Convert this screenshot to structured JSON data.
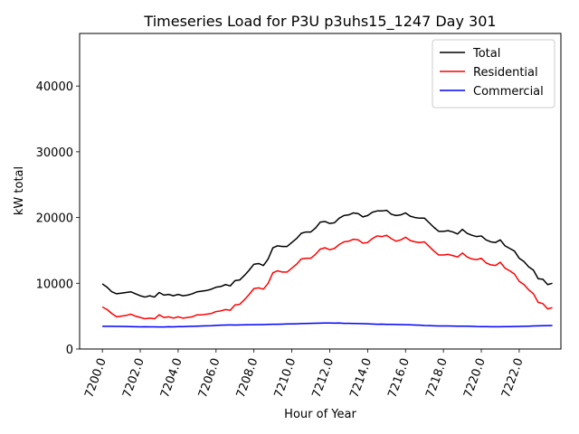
{
  "chart_data": {
    "type": "line",
    "title": "Timeseries Load for P3U p3uhs15_1247  Day 301",
    "xlabel": "Hour of Year",
    "ylabel": "kW total",
    "xlim": [
      7198.8,
      7224.2
    ],
    "ylim": [
      0,
      48000
    ],
    "xticks": [
      7200,
      7202,
      7204,
      7206,
      7208,
      7210,
      7212,
      7214,
      7216,
      7218,
      7220,
      7222
    ],
    "xtick_labels": [
      "7200.0",
      "7202.0",
      "7204.0",
      "7206.0",
      "7208.0",
      "7210.0",
      "7212.0",
      "7214.0",
      "7216.0",
      "7218.0",
      "7220.0",
      "7222.0"
    ],
    "yticks": [
      0,
      10000,
      20000,
      30000,
      40000
    ],
    "ytick_labels": [
      "0",
      "10000",
      "20000",
      "30000",
      "40000"
    ],
    "legend_position": "top-right",
    "x_start": 7200,
    "x_step": 0.25,
    "series": [
      {
        "name": "Total",
        "color": "#000000",
        "values": [
          9900,
          9400,
          8700,
          8400,
          8500,
          8600,
          8700,
          8400,
          8100,
          7900,
          8100,
          7900,
          8600,
          8200,
          8300,
          8100,
          8300,
          8100,
          8200,
          8400,
          8700,
          8800,
          8900,
          9100,
          9400,
          9500,
          9800,
          9600,
          10400,
          10500,
          11200,
          12000,
          12900,
          13000,
          12700,
          13700,
          15400,
          15700,
          15600,
          15600,
          16200,
          16800,
          17600,
          17800,
          17800,
          18400,
          19300,
          19400,
          19100,
          19200,
          19900,
          20300,
          20400,
          20700,
          20600,
          20100,
          20300,
          20800,
          21000,
          21000,
          21100,
          20500,
          20300,
          20400,
          20700,
          20200,
          20000,
          19900,
          19900,
          19200,
          18500,
          17900,
          17900,
          18000,
          17800,
          17500,
          18200,
          17600,
          17300,
          17100,
          17200,
          16600,
          16300,
          16200,
          16600,
          15700,
          15300,
          14900,
          13800,
          13300,
          12500,
          12000,
          10700,
          10600,
          9800,
          10000
        ]
      },
      {
        "name": "Residential",
        "color": "#ff0000",
        "values": [
          6400,
          6000,
          5400,
          4900,
          5000,
          5100,
          5300,
          5000,
          4800,
          4600,
          4700,
          4600,
          5200,
          4800,
          4900,
          4700,
          4900,
          4700,
          4800,
          4900,
          5200,
          5200,
          5300,
          5400,
          5700,
          5800,
          6000,
          5900,
          6700,
          6800,
          7500,
          8300,
          9200,
          9300,
          9100,
          10000,
          11600,
          11900,
          11700,
          11700,
          12300,
          12900,
          13700,
          13800,
          13800,
          14400,
          15200,
          15400,
          15100,
          15300,
          15900,
          16300,
          16400,
          16700,
          16600,
          16100,
          16200,
          16800,
          17200,
          17100,
          17300,
          16800,
          16400,
          16600,
          17000,
          16500,
          16300,
          16200,
          16300,
          15600,
          14900,
          14300,
          14300,
          14400,
          14200,
          14000,
          14600,
          14000,
          13700,
          13600,
          13800,
          13100,
          12800,
          12700,
          13200,
          12300,
          11900,
          11400,
          10300,
          9800,
          9000,
          8400,
          7100,
          6900,
          6100,
          6300
        ]
      },
      {
        "name": "Commercial",
        "color": "#0000ff",
        "values": [
          3450,
          3460,
          3450,
          3440,
          3440,
          3420,
          3400,
          3390,
          3370,
          3380,
          3370,
          3370,
          3350,
          3360,
          3380,
          3370,
          3400,
          3410,
          3430,
          3450,
          3480,
          3500,
          3520,
          3550,
          3600,
          3630,
          3650,
          3660,
          3650,
          3660,
          3680,
          3690,
          3700,
          3710,
          3720,
          3740,
          3760,
          3770,
          3790,
          3810,
          3820,
          3840,
          3860,
          3880,
          3900,
          3920,
          3940,
          3950,
          3960,
          3930,
          3950,
          3900,
          3910,
          3890,
          3870,
          3850,
          3840,
          3800,
          3760,
          3790,
          3750,
          3740,
          3730,
          3720,
          3700,
          3680,
          3650,
          3620,
          3580,
          3560,
          3530,
          3510,
          3500,
          3500,
          3490,
          3480,
          3480,
          3470,
          3450,
          3420,
          3410,
          3400,
          3390,
          3390,
          3390,
          3400,
          3410,
          3420,
          3440,
          3460,
          3480,
          3500,
          3520,
          3540,
          3560,
          3580
        ]
      }
    ]
  }
}
